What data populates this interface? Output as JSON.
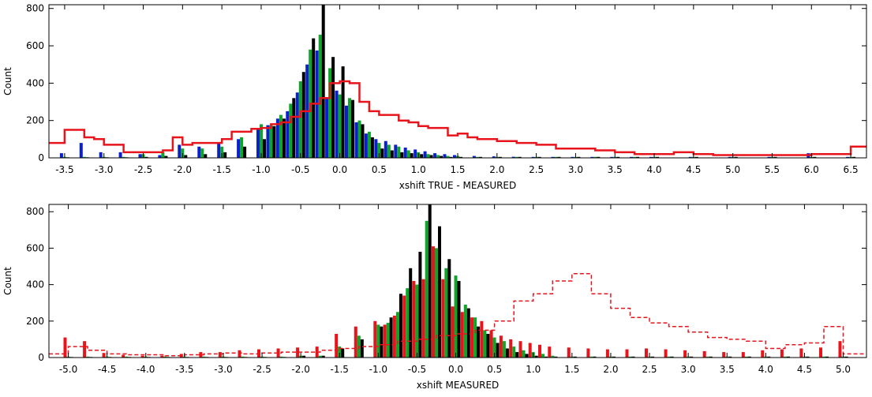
{
  "chart_data": [
    {
      "type": "bar",
      "xlabel": "xshift TRUE - MEASURED",
      "ylabel": "Count",
      "xlim": [
        -3.7,
        6.7
      ],
      "ylim": [
        0,
        820
      ],
      "x_ticks": [
        "-3.5",
        "-3.0",
        "-2.5",
        "-2.0",
        "-1.5",
        "-1.0",
        "-0.5",
        "0.0",
        "0.5",
        "1.0",
        "1.5",
        "2.0",
        "2.5",
        "3.0",
        "3.5",
        "4.0",
        "4.5",
        "5.0",
        "5.5",
        "6.0",
        "6.5"
      ],
      "x_tick_values": [
        -3.5,
        -3.0,
        -2.5,
        -2.0,
        -1.5,
        -1.0,
        -0.5,
        0.0,
        0.5,
        1.0,
        1.5,
        2.0,
        2.5,
        3.0,
        3.5,
        4.0,
        4.5,
        5.0,
        5.5,
        6.0,
        6.5
      ],
      "y_ticks": [
        "0",
        "200",
        "400",
        "600",
        "800"
      ],
      "y_tick_values": [
        0,
        200,
        400,
        600,
        800
      ],
      "bin_centers": [
        -3.5,
        -3.25,
        -3.0,
        -2.75,
        -2.5,
        -2.25,
        -2.0,
        -1.75,
        -1.5,
        -1.25,
        -1.0,
        -0.875,
        -0.75,
        -0.625,
        -0.5,
        -0.375,
        -0.25,
        -0.125,
        0.0,
        0.125,
        0.25,
        0.375,
        0.5,
        0.625,
        0.75,
        0.875,
        1.0,
        1.125,
        1.25,
        1.375,
        1.5,
        1.75,
        2.0,
        2.25,
        2.5,
        2.75,
        3.0,
        3.25,
        3.5,
        3.75,
        4.0,
        4.5,
        5.0,
        5.5,
        6.0,
        6.5
      ],
      "series": [
        {
          "color": "#0a1fd0",
          "values": [
            25,
            80,
            30,
            30,
            20,
            15,
            70,
            60,
            80,
            100,
            150,
            175,
            210,
            250,
            350,
            500,
            575,
            325,
            360,
            280,
            190,
            130,
            100,
            90,
            70,
            55,
            45,
            35,
            25,
            20,
            15,
            10,
            8,
            6,
            5,
            5,
            5,
            5,
            5,
            5,
            5,
            5,
            5,
            5,
            25,
            5
          ]
        },
        {
          "color": "#0ea628",
          "values": [
            5,
            5,
            5,
            5,
            20,
            30,
            50,
            50,
            60,
            110,
            180,
            175,
            230,
            290,
            410,
            580,
            660,
            480,
            340,
            320,
            200,
            140,
            80,
            70,
            60,
            40,
            30,
            20,
            15,
            10,
            10,
            5,
            5,
            5,
            5,
            5,
            5,
            5,
            5,
            5,
            5,
            5,
            5,
            5,
            5,
            5
          ]
        },
        {
          "color": "#000000",
          "values": [
            3,
            3,
            3,
            3,
            5,
            10,
            15,
            20,
            30,
            60,
            100,
            170,
            210,
            320,
            460,
            640,
            820,
            540,
            490,
            310,
            180,
            110,
            50,
            40,
            30,
            25,
            20,
            15,
            10,
            5,
            5,
            5,
            5,
            5,
            5,
            5,
            5,
            5,
            5,
            5,
            5,
            5,
            5,
            5,
            5,
            5
          ]
        }
      ],
      "step_series": [
        {
          "color": "#e8141c",
          "style": "solid",
          "edges": [
            -3.7,
            -3.5,
            -3.25,
            -3.125,
            -3.0,
            -2.75,
            -2.5,
            -2.25,
            -2.125,
            -2.0,
            -1.875,
            -1.75,
            -1.5,
            -1.375,
            -1.25,
            -1.125,
            -1.0,
            -0.875,
            -0.75,
            -0.625,
            -0.5,
            -0.375,
            -0.25,
            -0.125,
            0.0,
            0.125,
            0.25,
            0.375,
            0.5,
            0.625,
            0.75,
            0.875,
            1.0,
            1.125,
            1.25,
            1.375,
            1.5,
            1.625,
            1.75,
            2.0,
            2.25,
            2.5,
            2.75,
            3.0,
            3.25,
            3.5,
            3.75,
            4.0,
            4.25,
            4.5,
            4.75,
            5.0,
            5.5,
            6.0,
            6.25,
            6.5,
            6.7
          ],
          "values": [
            80,
            150,
            110,
            100,
            70,
            30,
            30,
            40,
            110,
            70,
            80,
            80,
            100,
            140,
            140,
            155,
            160,
            180,
            190,
            220,
            250,
            290,
            320,
            400,
            410,
            400,
            300,
            250,
            230,
            230,
            200,
            190,
            170,
            160,
            160,
            120,
            130,
            110,
            100,
            90,
            80,
            70,
            50,
            50,
            40,
            30,
            20,
            20,
            30,
            20,
            15,
            15,
            15,
            20,
            20,
            60,
            60
          ]
        }
      ]
    },
    {
      "type": "bar",
      "xlabel": "xshift MEASURED",
      "ylabel": "Count",
      "xlim": [
        -5.25,
        5.3
      ],
      "ylim": [
        0,
        840
      ],
      "x_ticks": [
        "-5.0",
        "-4.5",
        "-4.0",
        "-3.5",
        "-3.0",
        "-2.5",
        "-2.0",
        "-1.5",
        "-1.0",
        "-0.5",
        "0.0",
        "0.5",
        "1.0",
        "1.5",
        "2.0",
        "2.5",
        "3.0",
        "3.5",
        "4.0",
        "4.5",
        "5.0"
      ],
      "x_tick_values": [
        -5.0,
        -4.5,
        -4.0,
        -3.5,
        -3.0,
        -2.5,
        -2.0,
        -1.5,
        -1.0,
        -0.5,
        0.0,
        0.5,
        1.0,
        1.5,
        2.0,
        2.5,
        3.0,
        3.5,
        4.0,
        4.5,
        5.0
      ],
      "y_ticks": [
        "0",
        "200",
        "400",
        "600",
        "800"
      ],
      "y_tick_values": [
        0,
        200,
        400,
        600,
        800
      ],
      "bin_centers": [
        -5.0,
        -4.75,
        -4.5,
        -4.25,
        -4.0,
        -3.75,
        -3.5,
        -3.25,
        -3.0,
        -2.75,
        -2.5,
        -2.25,
        -2.0,
        -1.75,
        -1.5,
        -1.25,
        -1.0,
        -0.875,
        -0.75,
        -0.625,
        -0.5,
        -0.375,
        -0.25,
        -0.125,
        0.0,
        0.125,
        0.25,
        0.375,
        0.5,
        0.625,
        0.75,
        0.875,
        1.0,
        1.125,
        1.25,
        1.5,
        1.75,
        2.0,
        2.25,
        2.5,
        2.75,
        3.0,
        3.25,
        3.5,
        3.75,
        4.0,
        4.25,
        4.5,
        4.75,
        5.0
      ],
      "series": [
        {
          "color": "#e8141c",
          "values": [
            110,
            90,
            25,
            15,
            10,
            10,
            20,
            30,
            30,
            40,
            45,
            50,
            55,
            60,
            130,
            170,
            200,
            180,
            230,
            340,
            420,
            430,
            610,
            430,
            280,
            250,
            220,
            200,
            150,
            120,
            100,
            90,
            80,
            70,
            60,
            55,
            50,
            45,
            45,
            50,
            45,
            40,
            35,
            30,
            30,
            40,
            45,
            50,
            55,
            90
          ]
        },
        {
          "color": "#0ea628",
          "values": [
            5,
            5,
            5,
            5,
            5,
            5,
            5,
            5,
            5,
            5,
            5,
            5,
            10,
            10,
            60,
            120,
            180,
            190,
            250,
            380,
            400,
            750,
            600,
            490,
            450,
            290,
            220,
            150,
            110,
            90,
            60,
            40,
            30,
            20,
            10,
            5,
            5,
            5,
            5,
            5,
            5,
            5,
            5,
            5,
            5,
            5,
            5,
            5,
            5,
            5
          ]
        },
        {
          "color": "#000000",
          "values": [
            3,
            3,
            3,
            3,
            3,
            3,
            3,
            3,
            3,
            3,
            3,
            3,
            10,
            10,
            50,
            100,
            170,
            220,
            350,
            490,
            580,
            840,
            720,
            540,
            420,
            270,
            170,
            130,
            80,
            50,
            30,
            20,
            10,
            5,
            5,
            5,
            5,
            5,
            5,
            5,
            5,
            5,
            5,
            5,
            5,
            5,
            5,
            5,
            5,
            5
          ]
        }
      ],
      "step_series": [
        {
          "color": "#e8141c",
          "style": "dashed",
          "edges": [
            -5.25,
            -5.0,
            -4.75,
            -4.5,
            -4.25,
            -4.0,
            -3.75,
            -3.5,
            -3.25,
            -3.0,
            -2.75,
            -2.5,
            -2.25,
            -2.0,
            -1.75,
            -1.5,
            -1.25,
            -1.0,
            -0.75,
            -0.5,
            -0.25,
            0.0,
            0.25,
            0.5,
            0.75,
            1.0,
            1.25,
            1.5,
            1.75,
            2.0,
            2.25,
            2.5,
            2.75,
            3.0,
            3.25,
            3.5,
            3.75,
            4.0,
            4.25,
            4.5,
            4.75,
            5.0,
            5.3
          ],
          "values": [
            20,
            60,
            40,
            20,
            15,
            15,
            10,
            15,
            20,
            25,
            20,
            25,
            30,
            30,
            40,
            50,
            60,
            70,
            90,
            100,
            120,
            130,
            150,
            200,
            310,
            350,
            420,
            460,
            350,
            270,
            220,
            190,
            170,
            140,
            110,
            100,
            90,
            50,
            70,
            80,
            170,
            20
          ]
        }
      ]
    }
  ]
}
